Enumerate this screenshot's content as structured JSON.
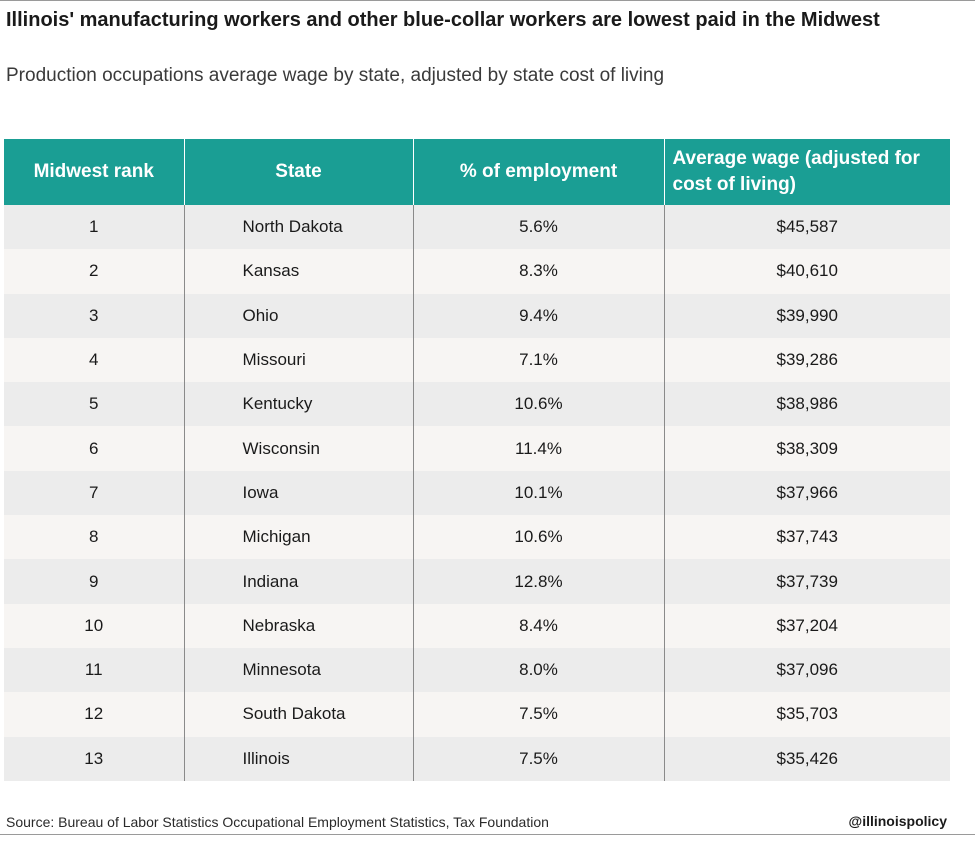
{
  "title": "Illinois' manufacturing workers and other blue-collar workers are lowest paid in the Midwest",
  "subtitle": "Production occupations average wage by state, adjusted by state cost of living",
  "source": "Source: Bureau of Labor Statistics Occupational Employment Statistics, Tax Foundation",
  "handle": "@illinoispolicy",
  "colors": {
    "header_bg": "#1a9e94",
    "row_odd": "#ececec",
    "row_even": "#f7f5f3"
  },
  "chart_data": {
    "type": "table",
    "title": "Illinois' manufacturing workers and other blue-collar workers are lowest paid in the Midwest",
    "subtitle": "Production occupations average wage by state, adjusted by state cost of living",
    "columns": [
      "Midwest rank",
      "State",
      "% of employment",
      "Average wage (adjusted for cost of living)"
    ],
    "rows": [
      [
        "1",
        "North Dakota",
        "5.6%",
        "$45,587"
      ],
      [
        "2",
        "Kansas",
        "8.3%",
        "$40,610"
      ],
      [
        "3",
        "Ohio",
        "9.4%",
        "$39,990"
      ],
      [
        "4",
        "Missouri",
        "7.1%",
        "$39,286"
      ],
      [
        "5",
        "Kentucky",
        "10.6%",
        "$38,986"
      ],
      [
        "6",
        "Wisconsin",
        "11.4%",
        "$38,309"
      ],
      [
        "7",
        "Iowa",
        "10.1%",
        "$37,966"
      ],
      [
        "8",
        "Michigan",
        "10.6%",
        "$37,743"
      ],
      [
        "9",
        "Indiana",
        "12.8%",
        "$37,739"
      ],
      [
        "10",
        "Nebraska",
        "8.4%",
        "$37,204"
      ],
      [
        "11",
        "Minnesota",
        "8.0%",
        "$37,096"
      ],
      [
        "12",
        "South Dakota",
        "7.5%",
        "$35,703"
      ],
      [
        "13",
        "Illinois",
        "7.5%",
        "$35,426"
      ]
    ]
  }
}
